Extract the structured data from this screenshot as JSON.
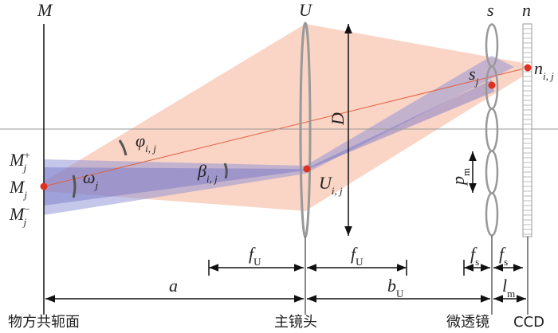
{
  "planes": {
    "object": "M",
    "lens": "U",
    "microlens": "s",
    "sensor": "n"
  },
  "points": {
    "m_plus": {
      "symbol": "M",
      "sub": "j",
      "sup": "+"
    },
    "m": {
      "symbol": "M",
      "sub": "j"
    },
    "m_minus": {
      "symbol": "M",
      "sub": "j",
      "sup": "−"
    },
    "u_ij": {
      "symbol": "U",
      "sub": "i, j"
    },
    "s_j": {
      "symbol": "s",
      "sub": "j"
    },
    "n_ij": {
      "symbol": "n",
      "sub": "i, j"
    }
  },
  "angles": {
    "phi": {
      "symbol": "φ",
      "sub": "i, j"
    },
    "omega": {
      "symbol": "ω",
      "sub": "j"
    },
    "beta": {
      "symbol": "β",
      "sub": "i, j"
    }
  },
  "sizes": {
    "aperture": "D",
    "pitch": {
      "symbol": "p",
      "sub": "m"
    }
  },
  "dimensions": {
    "f_u_left": {
      "symbol": "f",
      "sub": "U"
    },
    "f_u_right": {
      "symbol": "f",
      "sub": "U"
    },
    "f_s_left": {
      "symbol": "f",
      "sub": "s"
    },
    "f_s_right": {
      "symbol": "f",
      "sub": "s"
    },
    "a": {
      "symbol": "a"
    },
    "b_u": {
      "symbol": "b",
      "sub": "U"
    },
    "l_m": {
      "symbol": "l",
      "sub": "m"
    }
  },
  "captions": {
    "object_plane": "物方共轭面",
    "main_lens": "主镜头",
    "microlens": "微透镜",
    "ccd": "CCD"
  }
}
